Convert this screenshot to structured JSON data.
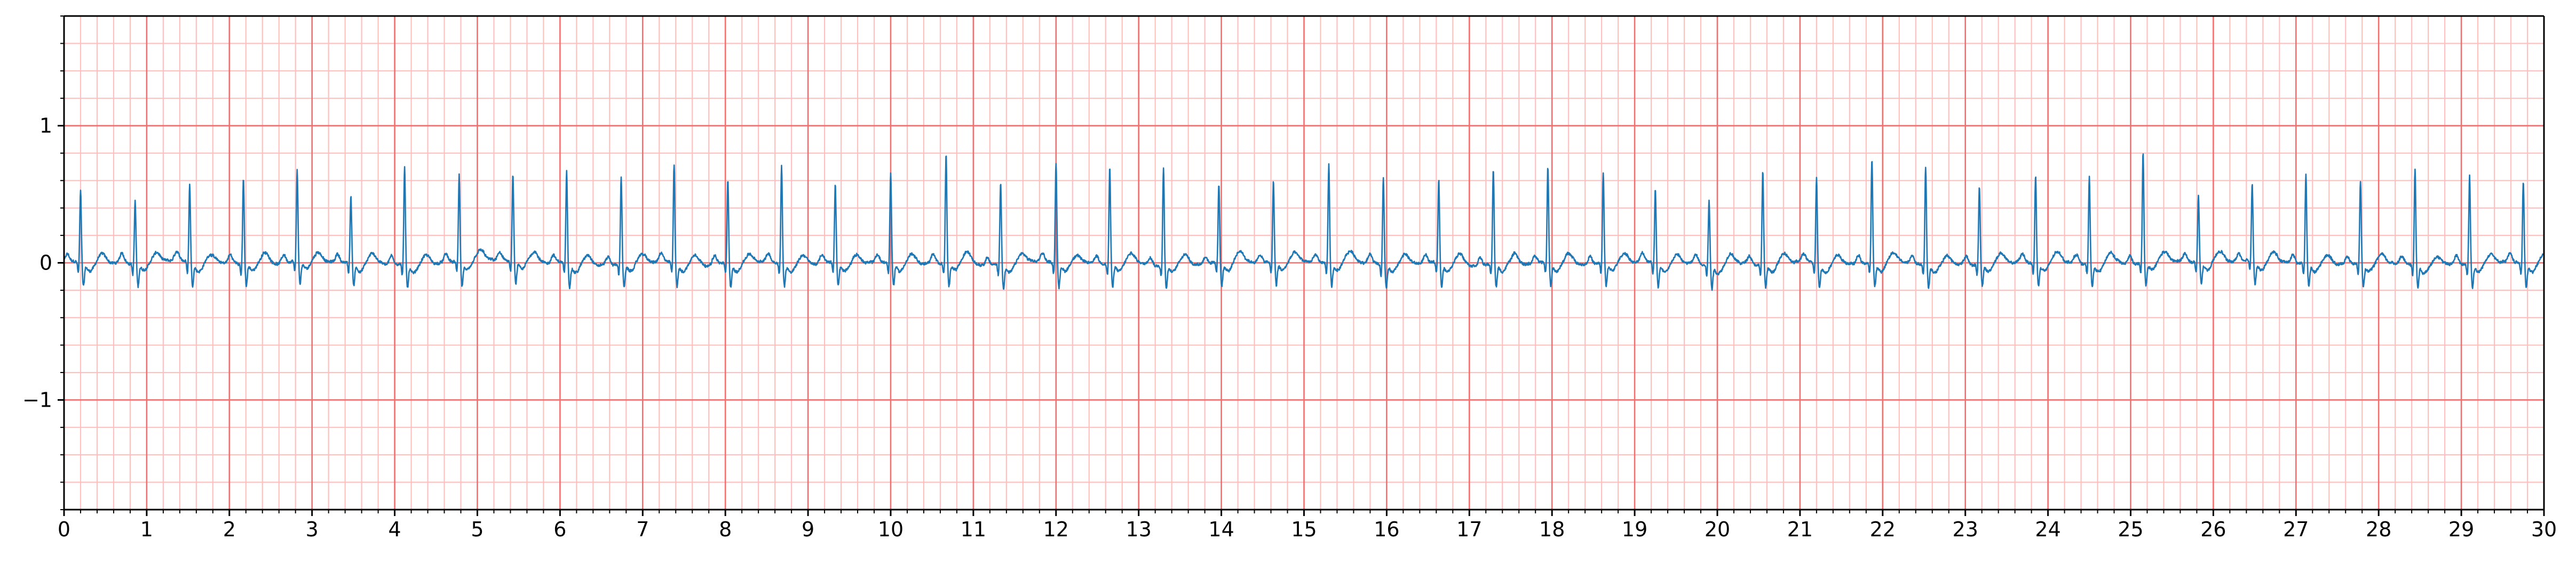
{
  "chart_data": {
    "type": "line",
    "title": "",
    "xlabel": "",
    "ylabel": "",
    "xlim": [
      0,
      30
    ],
    "ylim": [
      -1.8,
      1.8
    ],
    "x_major_step": 1,
    "x_minor_step": 0.2,
    "y_major_step": 1,
    "y_minor_step": 0.2,
    "grid": true,
    "grid_colors": {
      "major": "#f07070",
      "minor": "#ffc0c0"
    },
    "series_color": "#1f77b4",
    "x_tick_labels": [
      "0",
      "1",
      "2",
      "3",
      "4",
      "5",
      "6",
      "7",
      "8",
      "9",
      "10",
      "11",
      "12",
      "13",
      "14",
      "15",
      "16",
      "17",
      "18",
      "19",
      "20",
      "21",
      "22",
      "23",
      "24",
      "25",
      "26",
      "27",
      "28",
      "29",
      "30"
    ],
    "y_tick_labels": [
      {
        "value": 1,
        "label": "1"
      },
      {
        "value": 0,
        "label": "0"
      },
      {
        "value": -1,
        "label": "−1"
      }
    ],
    "series": [
      {
        "beat_times": [
          0.2,
          0.86,
          1.52,
          2.17,
          2.82,
          3.47,
          4.12,
          4.78,
          5.43,
          6.08,
          6.74,
          7.38,
          8.03,
          8.68,
          9.33,
          10.0,
          10.67,
          11.33,
          12.0,
          12.65,
          13.3,
          13.97,
          14.63,
          15.3,
          15.96,
          16.63,
          17.29,
          17.95,
          18.62,
          19.25,
          19.9,
          20.55,
          21.2,
          21.87,
          22.52,
          23.17,
          23.85,
          24.5,
          25.15,
          25.82,
          26.47,
          27.12,
          27.78,
          28.44,
          29.1,
          29.75
        ],
        "r_peaks": [
          0.48,
          0.42,
          0.53,
          0.58,
          0.62,
          0.45,
          0.66,
          0.6,
          0.6,
          0.63,
          0.6,
          0.68,
          0.57,
          0.67,
          0.52,
          0.62,
          0.77,
          0.56,
          0.7,
          0.67,
          0.68,
          0.53,
          0.55,
          0.68,
          0.6,
          0.57,
          0.66,
          0.66,
          0.62,
          0.5,
          0.43,
          0.65,
          0.58,
          0.72,
          0.67,
          0.53,
          0.6,
          0.58,
          0.77,
          0.45,
          0.52,
          0.61,
          0.57,
          0.66,
          0.61,
          0.57
        ]
      }
    ]
  }
}
